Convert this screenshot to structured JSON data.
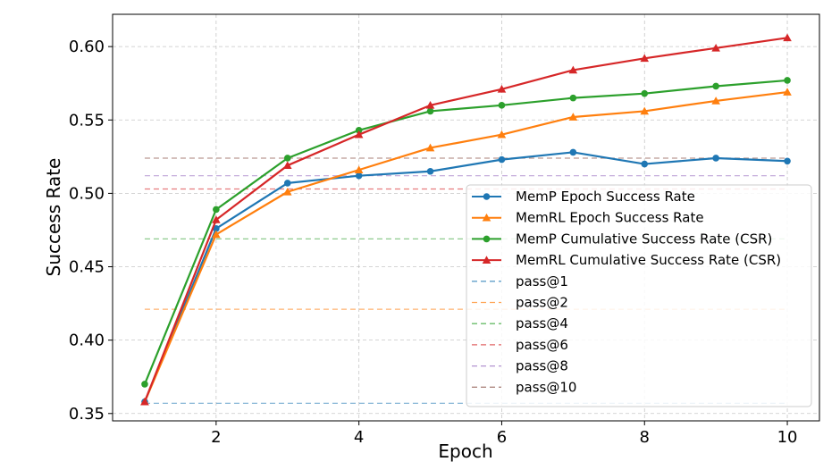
{
  "chart_data": {
    "type": "line",
    "xlabel": "Epoch",
    "ylabel": "Success Rate",
    "xlim": [
      0.55,
      10.45
    ],
    "ylim": [
      0.345,
      0.622
    ],
    "xticks": [
      2,
      4,
      6,
      8,
      10
    ],
    "yticks": [
      0.35,
      0.4,
      0.45,
      0.5,
      0.55,
      0.6
    ],
    "ytick_labels": [
      "0.35",
      "0.40",
      "0.45",
      "0.50",
      "0.55",
      "0.60"
    ],
    "grid": true,
    "legend_position": "lower right",
    "x": [
      1,
      2,
      3,
      4,
      5,
      6,
      7,
      8,
      9,
      10
    ],
    "series": [
      {
        "name": "MemP Epoch Success Rate",
        "color": "#1f77b4",
        "marker": "circle",
        "style": "solid",
        "values": [
          0.358,
          0.476,
          0.507,
          0.512,
          0.515,
          0.523,
          0.528,
          0.52,
          0.524,
          0.522
        ]
      },
      {
        "name": "MemRL Epoch Success Rate",
        "color": "#ff7f0e",
        "marker": "triangle",
        "style": "solid",
        "values": [
          0.358,
          0.472,
          0.501,
          0.516,
          0.531,
          0.54,
          0.552,
          0.556,
          0.563,
          0.569
        ]
      },
      {
        "name": "MemP Cumulative Success Rate (CSR)",
        "color": "#2ca02c",
        "marker": "circle",
        "style": "solid",
        "values": [
          0.37,
          0.489,
          0.524,
          0.543,
          0.556,
          0.56,
          0.565,
          0.568,
          0.573,
          0.577
        ]
      },
      {
        "name": "MemRL Cumulative Success Rate (CSR)",
        "color": "#d62728",
        "marker": "triangle",
        "style": "solid",
        "values": [
          0.358,
          0.482,
          0.519,
          0.54,
          0.56,
          0.571,
          0.584,
          0.592,
          0.599,
          0.606
        ]
      }
    ],
    "reference_lines": [
      {
        "name": "pass@1",
        "color": "#1f77b4",
        "value": 0.357
      },
      {
        "name": "pass@2",
        "color": "#ff7f0e",
        "value": 0.421
      },
      {
        "name": "pass@4",
        "color": "#2ca02c",
        "value": 0.469
      },
      {
        "name": "pass@6",
        "color": "#d62728",
        "value": 0.503
      },
      {
        "name": "pass@8",
        "color": "#9467bd",
        "value": 0.512
      },
      {
        "name": "pass@10",
        "color": "#8c564b",
        "value": 0.524
      }
    ]
  }
}
